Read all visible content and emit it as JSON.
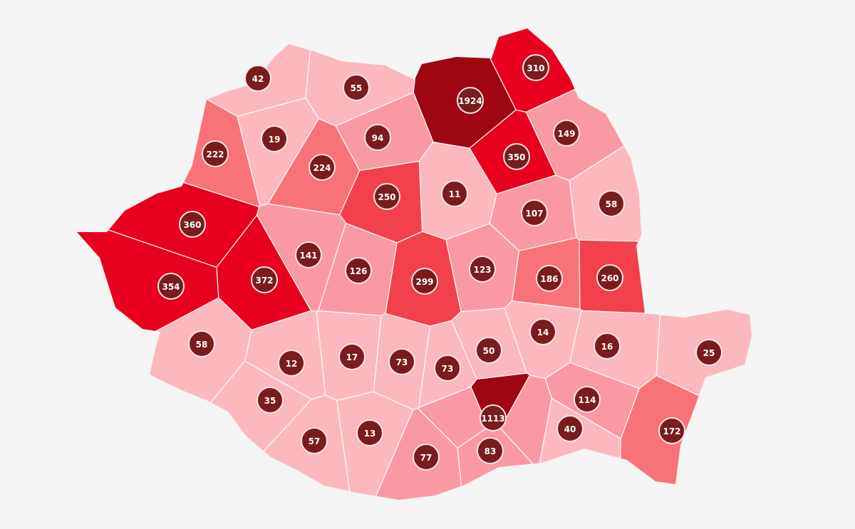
{
  "map": {
    "country": "Romania",
    "color_scale": [
      "#fdb8be",
      "#f99aa3",
      "#f87378",
      "#f2414d",
      "#e8001f",
      "#9e0712"
    ],
    "badge_color": "#7a1c1c",
    "counties": [
      {
        "value": "42",
        "level": 0
      },
      {
        "value": "55",
        "level": 0
      },
      {
        "value": "1924",
        "level": 5
      },
      {
        "value": "310",
        "level": 4
      },
      {
        "value": "149",
        "level": 1
      },
      {
        "value": "19",
        "level": 0
      },
      {
        "value": "94",
        "level": 1
      },
      {
        "value": "222",
        "level": 2
      },
      {
        "value": "224",
        "level": 2
      },
      {
        "value": "350",
        "level": 4
      },
      {
        "value": "250",
        "level": 3
      },
      {
        "value": "11",
        "level": 0
      },
      {
        "value": "107",
        "level": 1
      },
      {
        "value": "58",
        "level": 0
      },
      {
        "value": "360",
        "level": 4
      },
      {
        "value": "141",
        "level": 1
      },
      {
        "value": "126",
        "level": 1
      },
      {
        "value": "299",
        "level": 3
      },
      {
        "value": "123",
        "level": 1
      },
      {
        "value": "186",
        "level": 2
      },
      {
        "value": "260",
        "level": 3
      },
      {
        "value": "354",
        "level": 4
      },
      {
        "value": "372",
        "level": 4
      },
      {
        "value": "58",
        "level": 0
      },
      {
        "value": "12",
        "level": 0
      },
      {
        "value": "17",
        "level": 0
      },
      {
        "value": "73",
        "level": 0
      },
      {
        "value": "73",
        "level": 0
      },
      {
        "value": "50",
        "level": 0
      },
      {
        "value": "14",
        "level": 0
      },
      {
        "value": "16",
        "level": 0
      },
      {
        "value": "25",
        "level": 0
      },
      {
        "value": "35",
        "level": 0
      },
      {
        "value": "114",
        "level": 1
      },
      {
        "value": "1113",
        "level": 5
      },
      {
        "value": "172",
        "level": 2
      },
      {
        "value": "57",
        "level": 0
      },
      {
        "value": "13",
        "level": 0
      },
      {
        "value": "77",
        "level": 1
      },
      {
        "value": "83",
        "level": 1
      },
      {
        "value": "40",
        "level": 0
      }
    ]
  }
}
